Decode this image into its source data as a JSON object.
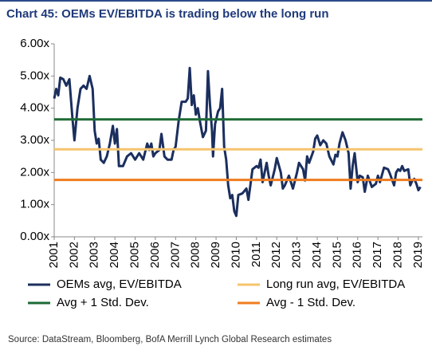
{
  "chart_data": {
    "type": "line",
    "title": "Chart 45: OEMs EV/EBITDA is trading below the long run",
    "source": "Source:  DataStream, Bloomberg, BofA Merrill Lynch Global Research estimates",
    "xlim": [
      2001,
      2019.2
    ],
    "xticks": [
      2001,
      2002,
      2003,
      2004,
      2005,
      2006,
      2007,
      2008,
      2009,
      2010,
      2011,
      2012,
      2013,
      2014,
      2015,
      2016,
      2017,
      2018,
      2019
    ],
    "ylim": [
      0,
      6
    ],
    "yticks": [
      {
        "value": 0,
        "label": "0.00x"
      },
      {
        "value": 1,
        "label": "1.00x"
      },
      {
        "value": 2,
        "label": "2.00x"
      },
      {
        "value": 3,
        "label": "3.00x"
      },
      {
        "value": 4,
        "label": "4.00x"
      },
      {
        "value": 5,
        "label": "5.00x"
      },
      {
        "value": 6,
        "label": "6.00x"
      }
    ],
    "series": [
      {
        "name": "OEMs avg, EV/EBITDA",
        "color": "#1b2f5e",
        "x": [
          2001.0,
          2001.1,
          2001.2,
          2001.3,
          2001.45,
          2001.6,
          2001.75,
          2001.9,
          2002.0,
          2002.15,
          2002.3,
          2002.45,
          2002.6,
          2002.75,
          2002.9,
          2003.0,
          2003.1,
          2003.2,
          2003.3,
          2003.45,
          2003.6,
          2003.75,
          2003.9,
          2004.0,
          2004.1,
          2004.2,
          2004.4,
          2004.6,
          2004.8,
          2005.0,
          2005.2,
          2005.4,
          2005.6,
          2005.7,
          2005.8,
          2005.9,
          2006.0,
          2006.2,
          2006.3,
          2006.45,
          2006.6,
          2006.8,
          2006.9,
          2007.0,
          2007.15,
          2007.3,
          2007.5,
          2007.6,
          2007.7,
          2007.8,
          2007.9,
          2008.0,
          2008.1,
          2008.2,
          2008.35,
          2008.5,
          2008.6,
          2008.7,
          2008.8,
          2008.85,
          2008.95,
          2009.1,
          2009.2,
          2009.3,
          2009.4,
          2009.5,
          2009.6,
          2009.7,
          2009.8,
          2009.9,
          2010.0,
          2010.1,
          2010.3,
          2010.5,
          2010.6,
          2010.8,
          2011.0,
          2011.1,
          2011.2,
          2011.3,
          2011.5,
          2011.6,
          2011.7,
          2011.9,
          2012.0,
          2012.2,
          2012.3,
          2012.4,
          2012.6,
          2012.8,
          2013.0,
          2013.1,
          2013.3,
          2013.4,
          2013.5,
          2013.6,
          2013.8,
          2013.9,
          2014.0,
          2014.15,
          2014.3,
          2014.45,
          2014.6,
          2014.8,
          2014.9,
          2015.0,
          2015.1,
          2015.25,
          2015.4,
          2015.55,
          2015.65,
          2015.75,
          2015.85,
          2016.0,
          2016.1,
          2016.25,
          2016.35,
          2016.5,
          2016.7,
          2016.9,
          2017.0,
          2017.1,
          2017.3,
          2017.5,
          2017.6,
          2017.8,
          2017.9,
          2018.0,
          2018.1,
          2018.2,
          2018.3,
          2018.5,
          2018.6,
          2018.7,
          2018.8,
          2018.9,
          2019.0,
          2019.1
        ],
        "values": [
          4.3,
          4.6,
          4.4,
          4.95,
          4.9,
          4.7,
          4.9,
          3.7,
          3.0,
          4.0,
          4.6,
          4.7,
          4.6,
          5.0,
          4.6,
          3.3,
          2.9,
          3.05,
          2.4,
          2.3,
          2.5,
          2.9,
          3.45,
          2.9,
          3.35,
          2.2,
          2.2,
          2.5,
          2.6,
          2.4,
          2.6,
          2.4,
          2.9,
          2.7,
          2.9,
          2.5,
          2.6,
          2.7,
          3.2,
          2.5,
          2.4,
          2.4,
          2.7,
          2.8,
          3.6,
          4.2,
          4.2,
          4.3,
          5.25,
          4.1,
          4.4,
          3.8,
          4.0,
          3.6,
          3.1,
          3.3,
          5.15,
          4.1,
          3.3,
          2.5,
          3.5,
          3.9,
          4.0,
          4.6,
          2.8,
          2.4,
          1.6,
          1.2,
          1.3,
          0.8,
          0.65,
          1.3,
          1.35,
          1.5,
          1.15,
          2.1,
          2.2,
          2.15,
          2.4,
          1.7,
          2.3,
          1.9,
          1.6,
          2.1,
          2.45,
          2.0,
          1.5,
          1.6,
          1.9,
          1.5,
          2.0,
          2.3,
          2.1,
          1.75,
          2.5,
          2.3,
          2.65,
          3.05,
          3.15,
          2.85,
          3.0,
          2.9,
          2.5,
          2.25,
          2.55,
          2.5,
          2.9,
          3.25,
          3.0,
          2.6,
          1.5,
          2.2,
          2.6,
          1.7,
          1.9,
          1.85,
          1.4,
          1.9,
          1.55,
          1.65,
          1.9,
          1.7,
          2.15,
          2.1,
          1.95,
          1.6,
          2.0,
          2.1,
          2.05,
          2.2,
          2.05,
          2.1,
          1.6,
          1.75,
          1.8,
          1.65,
          1.45,
          1.55
        ]
      },
      {
        "name": "Long run avg, EV/EBITDA",
        "color": "#f5c46e",
        "values": [
          2.72
        ]
      },
      {
        "name": "Avg + 1 Std. Dev.",
        "color": "#1d6b34",
        "values": [
          3.65
        ]
      },
      {
        "name": "Avg - 1 Std. Dev.",
        "color": "#ee7d1f",
        "values": [
          1.77
        ]
      }
    ]
  }
}
